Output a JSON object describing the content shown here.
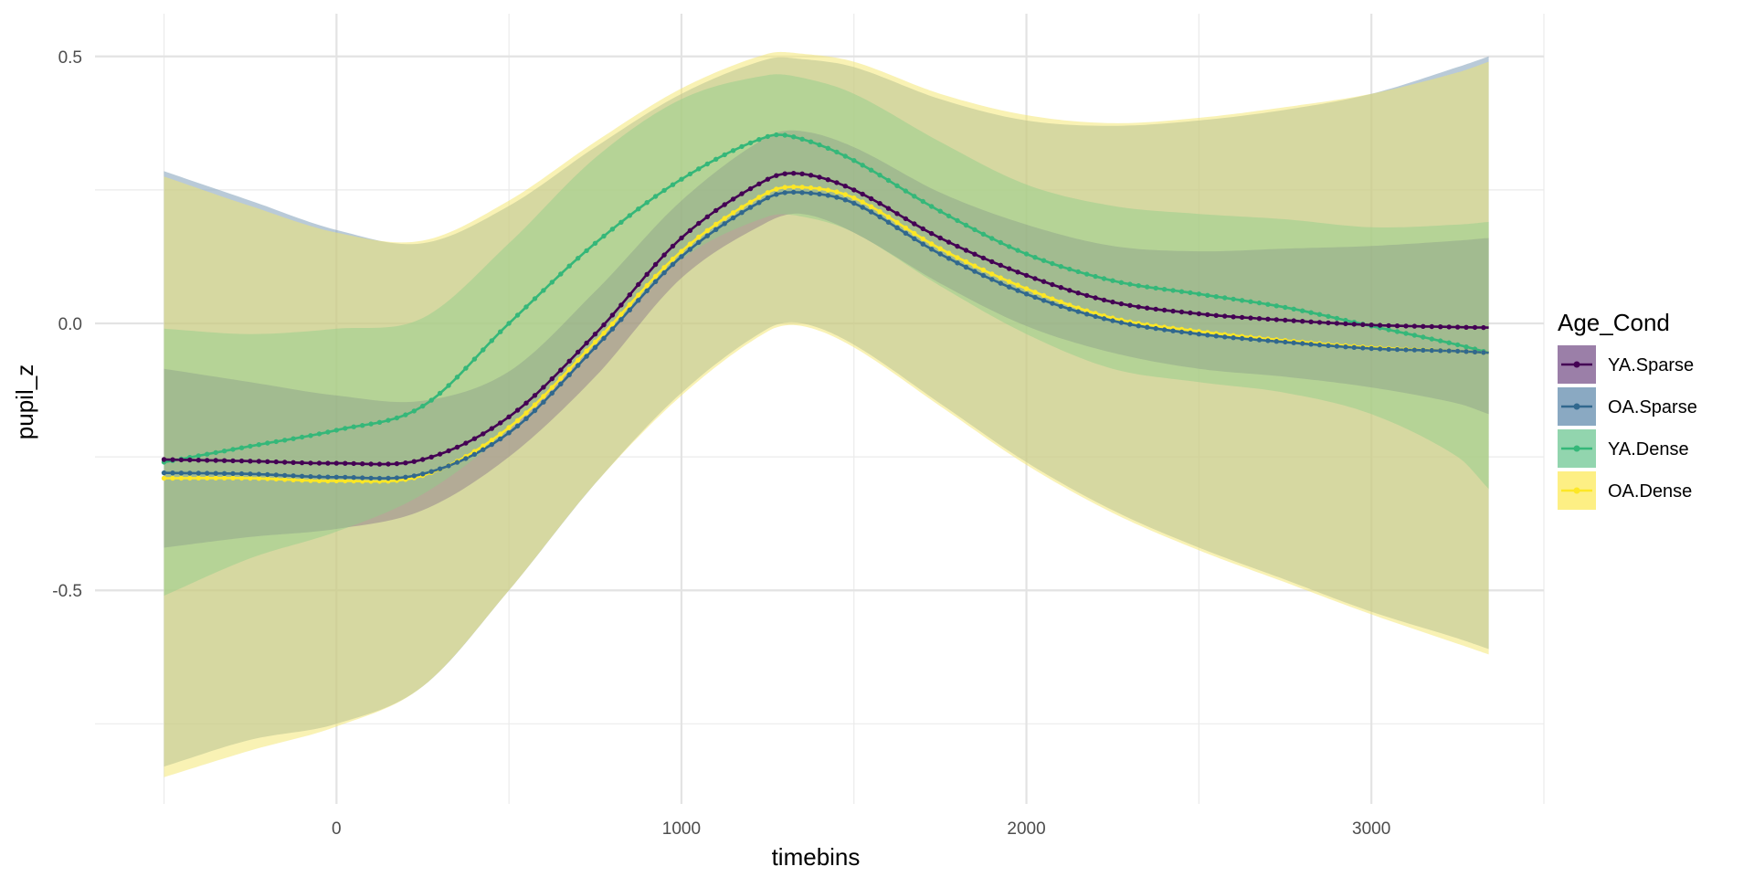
{
  "chart_data": {
    "type": "line",
    "title": "",
    "xlabel": "timebins",
    "ylabel": "pupil_z",
    "xlim": [
      -700,
      3500
    ],
    "ylim": [
      -0.9,
      0.58
    ],
    "x_ticks": [
      0,
      1000,
      2000,
      3000
    ],
    "x_tick_labels": [
      "0",
      "1000",
      "2000",
      "3000"
    ],
    "y_ticks": [
      -0.5,
      0.0,
      0.5
    ],
    "y_tick_labels": [
      "-0.5",
      "0.0",
      "0.5"
    ],
    "grid": true,
    "legend": {
      "title": "Age_Cond",
      "placement": "right"
    },
    "x": [
      -500,
      -250,
      0,
      250,
      500,
      750,
      1000,
      1250,
      1350,
      1500,
      1750,
      2000,
      2250,
      2500,
      2750,
      3000,
      3250,
      3340
    ],
    "series": [
      {
        "name": "YA.Sparse",
        "color": "#440154",
        "values": [
          -0.255,
          -0.258,
          -0.262,
          -0.255,
          -0.175,
          -0.02,
          0.16,
          0.27,
          0.28,
          0.25,
          0.16,
          0.09,
          0.04,
          0.018,
          0.006,
          -0.003,
          -0.007,
          -0.008
        ],
        "lower": [
          -0.42,
          -0.4,
          -0.385,
          -0.35,
          -0.25,
          -0.1,
          0.085,
          0.19,
          0.205,
          0.17,
          0.075,
          -0.005,
          -0.055,
          -0.085,
          -0.1,
          -0.12,
          -0.15,
          -0.17
        ],
        "upper": [
          -0.085,
          -0.11,
          -0.135,
          -0.145,
          -0.09,
          0.06,
          0.23,
          0.35,
          0.36,
          0.33,
          0.245,
          0.185,
          0.145,
          0.135,
          0.14,
          0.145,
          0.155,
          0.16
        ]
      },
      {
        "name": "OA.Sparse",
        "color": "#31688e",
        "values": [
          -0.28,
          -0.282,
          -0.288,
          -0.282,
          -0.205,
          -0.045,
          0.125,
          0.235,
          0.245,
          0.225,
          0.13,
          0.055,
          0.005,
          -0.02,
          -0.035,
          -0.047,
          -0.052,
          -0.055
        ],
        "lower": [
          -0.83,
          -0.78,
          -0.75,
          -0.68,
          -0.5,
          -0.3,
          -0.13,
          -0.01,
          0.0,
          -0.04,
          -0.15,
          -0.26,
          -0.35,
          -0.42,
          -0.48,
          -0.54,
          -0.59,
          -0.61
        ],
        "upper": [
          0.285,
          0.23,
          0.175,
          0.15,
          0.22,
          0.33,
          0.43,
          0.495,
          0.495,
          0.48,
          0.42,
          0.38,
          0.37,
          0.38,
          0.4,
          0.43,
          0.48,
          0.5
        ]
      },
      {
        "name": "YA.Dense",
        "color": "#35b779",
        "values": [
          -0.26,
          -0.23,
          -0.2,
          -0.155,
          0.0,
          0.15,
          0.27,
          0.35,
          0.345,
          0.305,
          0.21,
          0.13,
          0.08,
          0.055,
          0.03,
          -0.005,
          -0.04,
          -0.055
        ],
        "lower": [
          -0.51,
          -0.44,
          -0.39,
          -0.32,
          -0.2,
          -0.04,
          0.12,
          0.2,
          0.2,
          0.17,
          0.07,
          -0.02,
          -0.085,
          -0.11,
          -0.13,
          -0.17,
          -0.25,
          -0.31
        ],
        "upper": [
          -0.01,
          -0.02,
          -0.01,
          0.01,
          0.15,
          0.31,
          0.42,
          0.465,
          0.46,
          0.43,
          0.34,
          0.26,
          0.22,
          0.205,
          0.195,
          0.18,
          0.185,
          0.19
        ]
      },
      {
        "name": "OA.Dense",
        "color": "#fde725",
        "values": [
          -0.29,
          -0.29,
          -0.295,
          -0.285,
          -0.195,
          -0.035,
          0.135,
          0.245,
          0.255,
          0.235,
          0.14,
          0.065,
          0.01,
          -0.015,
          -0.032,
          -0.045,
          -0.052,
          -0.055
        ],
        "lower": [
          -0.85,
          -0.8,
          -0.755,
          -0.68,
          -0.5,
          -0.3,
          -0.135,
          -0.015,
          -0.005,
          -0.045,
          -0.155,
          -0.265,
          -0.355,
          -0.425,
          -0.485,
          -0.545,
          -0.6,
          -0.62
        ],
        "upper": [
          0.275,
          0.22,
          0.17,
          0.155,
          0.23,
          0.34,
          0.44,
          0.505,
          0.505,
          0.49,
          0.43,
          0.39,
          0.375,
          0.385,
          0.405,
          0.43,
          0.47,
          0.49
        ]
      }
    ]
  }
}
